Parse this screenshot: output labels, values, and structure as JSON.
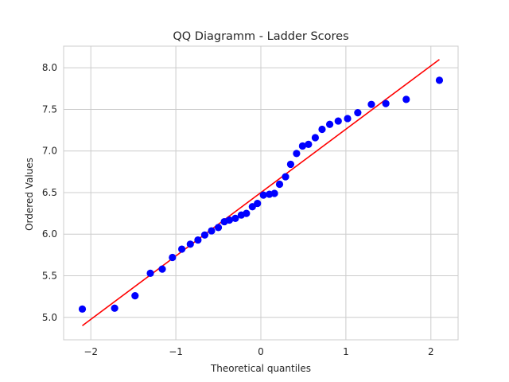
{
  "chart_data": {
    "type": "scatter",
    "title": "QQ Diagramm - Ladder Scores",
    "xlabel": "Theoretical quantiles",
    "ylabel": "Ordered Values",
    "xlim": [
      -2.32,
      2.32
    ],
    "ylim": [
      4.73,
      8.26
    ],
    "xticks": [
      -2,
      -1,
      0,
      1,
      2
    ],
    "xtick_labels": [
      "−2",
      "−1",
      "0",
      "1",
      "2"
    ],
    "yticks": [
      5.0,
      5.5,
      6.0,
      6.5,
      7.0,
      7.5,
      8.0
    ],
    "ytick_labels": [
      "5.0",
      "5.5",
      "6.0",
      "6.5",
      "7.0",
      "7.5",
      "8.0"
    ],
    "grid": true,
    "colors": {
      "points": "#0000ff",
      "fit_line": "#ff0000",
      "grid": "#cccccc",
      "axes_edge": "#cccccc",
      "text": "#262626"
    },
    "series": [
      {
        "name": "Ordered Values",
        "kind": "points",
        "x": [
          -2.1,
          -1.72,
          -1.48,
          -1.3,
          -1.16,
          -1.04,
          -0.93,
          -0.83,
          -0.74,
          -0.66,
          -0.58,
          -0.5,
          -0.43,
          -0.37,
          -0.3,
          -0.23,
          -0.17,
          -0.1,
          -0.04,
          0.03,
          0.1,
          0.16,
          0.22,
          0.29,
          0.35,
          0.42,
          0.49,
          0.56,
          0.64,
          0.72,
          0.81,
          0.91,
          1.02,
          1.14,
          1.3,
          1.47,
          1.71,
          2.1
        ],
        "y": [
          5.1,
          5.11,
          5.26,
          5.53,
          5.58,
          5.72,
          5.82,
          5.88,
          5.93,
          5.99,
          6.04,
          6.08,
          6.15,
          6.17,
          6.19,
          6.23,
          6.25,
          6.33,
          6.37,
          6.47,
          6.48,
          6.49,
          6.6,
          6.69,
          6.84,
          6.97,
          7.06,
          7.08,
          7.16,
          7.26,
          7.32,
          7.36,
          7.39,
          7.46,
          7.56,
          7.57,
          7.62,
          7.85
        ]
      },
      {
        "name": "Fit line",
        "kind": "line",
        "x": [
          -2.1,
          2.1
        ],
        "y": [
          4.9,
          8.1
        ]
      }
    ]
  }
}
